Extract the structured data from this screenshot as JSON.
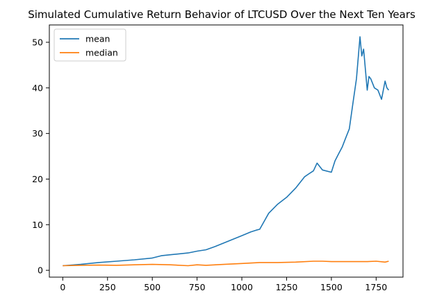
{
  "chart_data": {
    "type": "line",
    "title": "Simulated Cumulative Return Behavior of LTCUSD Over the Next Ten Years",
    "xlabel": "",
    "ylabel": "",
    "xlim": [
      -75,
      1900
    ],
    "ylim": [
      -1.5,
      53.8
    ],
    "xticks": [
      0,
      250,
      500,
      750,
      1000,
      1250,
      1500,
      1750
    ],
    "yticks": [
      0,
      10,
      20,
      30,
      40,
      50
    ],
    "grid": false,
    "legend_position": "upper-left",
    "colors": {
      "mean": "#1f77b4",
      "median": "#ff7f0e"
    },
    "series": [
      {
        "name": "mean",
        "x": [
          0,
          100,
          200,
          300,
          400,
          500,
          550,
          600,
          700,
          750,
          800,
          850,
          900,
          950,
          1000,
          1050,
          1080,
          1100,
          1150,
          1200,
          1250,
          1300,
          1350,
          1380,
          1400,
          1420,
          1450,
          1500,
          1520,
          1540,
          1560,
          1580,
          1600,
          1620,
          1640,
          1660,
          1670,
          1680,
          1690,
          1700,
          1710,
          1720,
          1740,
          1760,
          1780,
          1800,
          1810,
          1820
        ],
        "y": [
          1.0,
          1.3,
          1.7,
          2.0,
          2.3,
          2.7,
          3.2,
          3.4,
          3.8,
          4.2,
          4.5,
          5.2,
          6.0,
          6.8,
          7.6,
          8.4,
          8.8,
          9.0,
          12.5,
          14.5,
          16.0,
          18.0,
          20.5,
          21.3,
          21.8,
          23.5,
          22.0,
          21.5,
          24.0,
          25.5,
          27.0,
          29.0,
          31.0,
          36.5,
          42.0,
          51.2,
          47.0,
          48.5,
          44.0,
          39.5,
          42.5,
          42.0,
          40.0,
          39.5,
          37.5,
          41.5,
          40.0,
          39.5
        ]
      },
      {
        "name": "median",
        "x": [
          0,
          100,
          200,
          300,
          400,
          500,
          600,
          700,
          750,
          800,
          900,
          1000,
          1100,
          1200,
          1300,
          1400,
          1450,
          1500,
          1600,
          1700,
          1750,
          1800,
          1820
        ],
        "y": [
          1.0,
          1.1,
          1.15,
          1.1,
          1.2,
          1.3,
          1.2,
          1.0,
          1.2,
          1.1,
          1.3,
          1.5,
          1.7,
          1.7,
          1.8,
          2.0,
          2.0,
          1.9,
          1.9,
          1.9,
          2.0,
          1.8,
          2.0
        ]
      }
    ]
  }
}
